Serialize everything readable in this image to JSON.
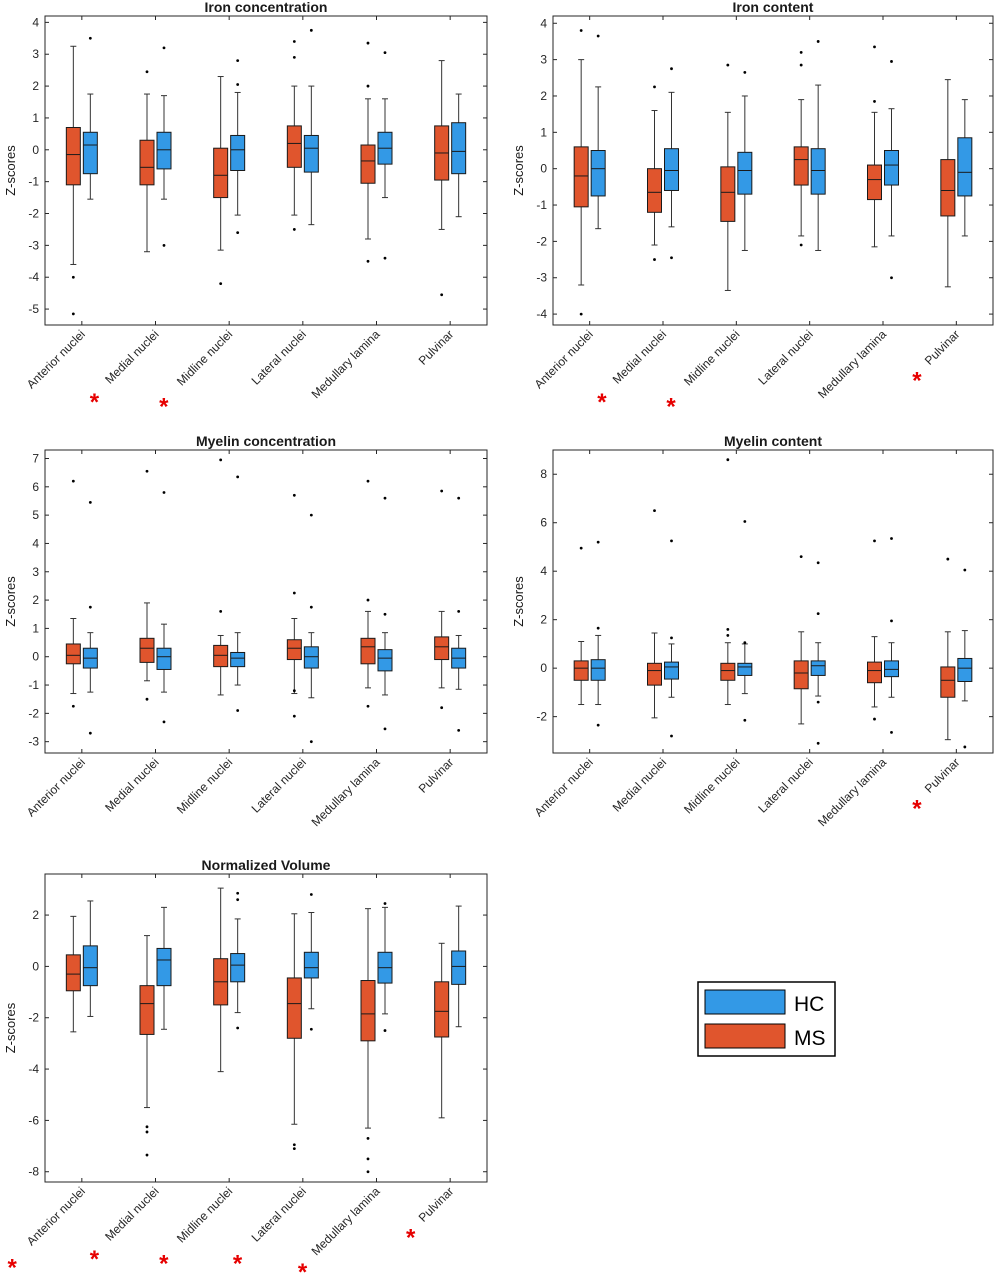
{
  "legend": {
    "entries": [
      {
        "name": "HC",
        "color": "#3399e6"
      },
      {
        "name": "MS",
        "color": "#e0552d"
      }
    ],
    "placement": "lower-right"
  },
  "colors": {
    "HC": "#3399e6",
    "MS": "#e0552d",
    "significance": "#e60000"
  },
  "chart_data": [
    {
      "type": "boxplot",
      "title": "Iron concentration",
      "ylabel": "Z-scores",
      "ylim": [
        -5.5,
        4.2
      ],
      "yticks": [
        -5,
        -4,
        -3,
        -2,
        -1,
        0,
        1,
        2,
        3,
        4
      ],
      "categories": [
        "Anterior nuclei",
        "Medial nuclei",
        "Midline nuclei",
        "Lateral nuclei",
        "Medullary lamina",
        "Pulvinar"
      ],
      "significant": [
        false,
        true,
        true,
        false,
        false,
        false
      ],
      "series": [
        {
          "name": "MS",
          "boxes": [
            {
              "lw": -3.6,
              "q1": -1.1,
              "med": -0.15,
              "q3": 0.7,
              "uw": 3.25,
              "out": [
                -4.0,
                -5.15
              ]
            },
            {
              "lw": -3.2,
              "q1": -1.1,
              "med": -0.55,
              "q3": 0.3,
              "uw": 1.75,
              "out": [
                2.45
              ]
            },
            {
              "lw": -3.15,
              "q1": -1.5,
              "med": -0.8,
              "q3": 0.05,
              "uw": 2.3,
              "out": [
                -4.2
              ]
            },
            {
              "lw": -2.05,
              "q1": -0.55,
              "med": 0.2,
              "q3": 0.75,
              "uw": 2.0,
              "out": [
                3.4,
                2.9,
                -2.5
              ]
            },
            {
              "lw": -2.8,
              "q1": -1.05,
              "med": -0.35,
              "q3": 0.15,
              "uw": 1.6,
              "out": [
                3.35,
                2.0,
                -3.5
              ]
            },
            {
              "lw": -2.5,
              "q1": -0.95,
              "med": -0.1,
              "q3": 0.75,
              "uw": 2.8,
              "out": [
                -4.55
              ]
            }
          ]
        },
        {
          "name": "HC",
          "boxes": [
            {
              "lw": -1.55,
              "q1": -0.75,
              "med": 0.15,
              "q3": 0.55,
              "uw": 1.75,
              "out": [
                3.5
              ]
            },
            {
              "lw": -1.55,
              "q1": -0.6,
              "med": 0.0,
              "q3": 0.55,
              "uw": 1.7,
              "out": [
                3.2,
                -3.0
              ]
            },
            {
              "lw": -2.05,
              "q1": -0.65,
              "med": 0.0,
              "q3": 0.45,
              "uw": 1.8,
              "out": [
                2.8,
                2.05,
                -2.6
              ]
            },
            {
              "lw": -2.35,
              "q1": -0.7,
              "med": 0.05,
              "q3": 0.45,
              "uw": 2.0,
              "out": [
                3.75
              ]
            },
            {
              "lw": -1.5,
              "q1": -0.45,
              "med": 0.05,
              "q3": 0.55,
              "uw": 1.6,
              "out": [
                3.05,
                -3.4
              ]
            },
            {
              "lw": -2.1,
              "q1": -0.75,
              "med": -0.05,
              "q3": 0.85,
              "uw": 1.75,
              "out": []
            }
          ]
        }
      ]
    },
    {
      "type": "boxplot",
      "title": "Iron content",
      "ylabel": "Z-scores",
      "ylim": [
        -4.3,
        4.2
      ],
      "yticks": [
        -4,
        -3,
        -2,
        -1,
        0,
        1,
        2,
        3,
        4
      ],
      "categories": [
        "Anterior nuclei",
        "Medial nuclei",
        "Midline nuclei",
        "Lateral nuclei",
        "Medullary lamina",
        "Pulvinar"
      ],
      "significant": [
        false,
        true,
        true,
        false,
        false,
        true
      ],
      "series": [
        {
          "name": "MS",
          "boxes": [
            {
              "lw": -3.2,
              "q1": -1.05,
              "med": -0.2,
              "q3": 0.6,
              "uw": 3.0,
              "out": [
                3.8,
                -4.0
              ]
            },
            {
              "lw": -2.1,
              "q1": -1.2,
              "med": -0.65,
              "q3": 0.0,
              "uw": 1.6,
              "out": [
                2.25,
                -2.5
              ]
            },
            {
              "lw": -3.35,
              "q1": -1.45,
              "med": -0.65,
              "q3": 0.05,
              "uw": 1.55,
              "out": [
                2.85
              ]
            },
            {
              "lw": -1.85,
              "q1": -0.45,
              "med": 0.25,
              "q3": 0.6,
              "uw": 1.9,
              "out": [
                3.2,
                2.85,
                -2.1
              ]
            },
            {
              "lw": -2.15,
              "q1": -0.85,
              "med": -0.3,
              "q3": 0.1,
              "uw": 1.55,
              "out": [
                3.35,
                1.85
              ]
            },
            {
              "lw": -3.25,
              "q1": -1.3,
              "med": -0.6,
              "q3": 0.25,
              "uw": 2.45,
              "out": []
            }
          ]
        },
        {
          "name": "HC",
          "boxes": [
            {
              "lw": -1.65,
              "q1": -0.75,
              "med": 0.0,
              "q3": 0.5,
              "uw": 2.25,
              "out": [
                3.65
              ]
            },
            {
              "lw": -1.6,
              "q1": -0.6,
              "med": -0.05,
              "q3": 0.55,
              "uw": 2.1,
              "out": [
                2.75,
                -2.45
              ]
            },
            {
              "lw": -2.25,
              "q1": -0.7,
              "med": -0.05,
              "q3": 0.45,
              "uw": 2.0,
              "out": [
                2.65
              ]
            },
            {
              "lw": -2.25,
              "q1": -0.7,
              "med": -0.05,
              "q3": 0.55,
              "uw": 2.3,
              "out": [
                3.5
              ]
            },
            {
              "lw": -1.85,
              "q1": -0.45,
              "med": 0.1,
              "q3": 0.5,
              "uw": 1.65,
              "out": [
                2.95,
                -3.0
              ]
            },
            {
              "lw": -1.85,
              "q1": -0.75,
              "med": -0.1,
              "q3": 0.85,
              "uw": 1.9,
              "out": []
            }
          ]
        }
      ]
    },
    {
      "type": "boxplot",
      "title": "Myelin concentration",
      "ylabel": "Z-scores",
      "ylim": [
        -3.4,
        7.3
      ],
      "yticks": [
        -3,
        -2,
        -1,
        0,
        1,
        2,
        3,
        4,
        5,
        6,
        7
      ],
      "categories": [
        "Anterior nuclei",
        "Medial nuclei",
        "Midline nuclei",
        "Lateral nuclei",
        "Medullary lamina",
        "Pulvinar"
      ],
      "significant": [
        false,
        false,
        false,
        false,
        false,
        false
      ],
      "series": [
        {
          "name": "MS",
          "boxes": [
            {
              "lw": -1.3,
              "q1": -0.25,
              "med": 0.05,
              "q3": 0.45,
              "uw": 1.35,
              "out": [
                6.2,
                -1.75
              ]
            },
            {
              "lw": -0.85,
              "q1": -0.2,
              "med": 0.3,
              "q3": 0.65,
              "uw": 1.9,
              "out": [
                6.55,
                -1.5
              ]
            },
            {
              "lw": -1.35,
              "q1": -0.35,
              "med": 0.05,
              "q3": 0.4,
              "uw": 0.75,
              "out": [
                6.95,
                1.6
              ]
            },
            {
              "lw": -1.3,
              "q1": -0.1,
              "med": 0.3,
              "q3": 0.6,
              "uw": 1.35,
              "out": [
                5.7,
                2.25,
                -1.2,
                -2.1
              ]
            },
            {
              "lw": -1.1,
              "q1": -0.25,
              "med": 0.35,
              "q3": 0.65,
              "uw": 1.6,
              "out": [
                6.2,
                2.0,
                -1.75
              ]
            },
            {
              "lw": -1.1,
              "q1": -0.1,
              "med": 0.35,
              "q3": 0.7,
              "uw": 1.6,
              "out": [
                5.85,
                -1.8
              ]
            }
          ]
        },
        {
          "name": "HC",
          "boxes": [
            {
              "lw": -1.25,
              "q1": -0.4,
              "med": -0.05,
              "q3": 0.3,
              "uw": 0.85,
              "out": [
                5.45,
                1.75,
                -2.7
              ]
            },
            {
              "lw": -1.25,
              "q1": -0.45,
              "med": 0.0,
              "q3": 0.3,
              "uw": 1.15,
              "out": [
                5.8,
                -2.3
              ]
            },
            {
              "lw": -1.0,
              "q1": -0.35,
              "med": -0.05,
              "q3": 0.15,
              "uw": 0.85,
              "out": [
                6.35,
                -1.9
              ]
            },
            {
              "lw": -1.45,
              "q1": -0.4,
              "med": 0.0,
              "q3": 0.35,
              "uw": 0.85,
              "out": [
                5.0,
                1.75,
                -3.0
              ]
            },
            {
              "lw": -1.35,
              "q1": -0.5,
              "med": -0.05,
              "q3": 0.25,
              "uw": 0.85,
              "out": [
                5.6,
                1.5,
                -2.55
              ]
            },
            {
              "lw": -1.15,
              "q1": -0.4,
              "med": -0.05,
              "q3": 0.3,
              "uw": 0.75,
              "out": [
                5.6,
                1.6,
                -2.6
              ]
            }
          ]
        }
      ]
    },
    {
      "type": "boxplot",
      "title": "Myelin content",
      "ylabel": "Z-scores",
      "ylim": [
        -3.5,
        9.0
      ],
      "yticks": [
        -2,
        0,
        2,
        4,
        6,
        8
      ],
      "categories": [
        "Anterior nuclei",
        "Medial nuclei",
        "Midline nuclei",
        "Lateral nuclei",
        "Medullary lamina",
        "Pulvinar"
      ],
      "significant": [
        false,
        false,
        false,
        false,
        false,
        true
      ],
      "series": [
        {
          "name": "MS",
          "boxes": [
            {
              "lw": -1.5,
              "q1": -0.5,
              "med": 0.0,
              "q3": 0.3,
              "uw": 1.1,
              "out": [
                4.95
              ]
            },
            {
              "lw": -2.05,
              "q1": -0.7,
              "med": -0.1,
              "q3": 0.2,
              "uw": 1.45,
              "out": [
                6.5
              ]
            },
            {
              "lw": -1.5,
              "q1": -0.5,
              "med": -0.1,
              "q3": 0.2,
              "uw": 1.05,
              "out": [
                8.6,
                1.6,
                1.35
              ]
            },
            {
              "lw": -2.3,
              "q1": -0.85,
              "med": -0.2,
              "q3": 0.3,
              "uw": 1.5,
              "out": [
                4.6
              ]
            },
            {
              "lw": -1.6,
              "q1": -0.6,
              "med": -0.1,
              "q3": 0.25,
              "uw": 1.3,
              "out": [
                5.25,
                -2.1
              ]
            },
            {
              "lw": -2.95,
              "q1": -1.2,
              "med": -0.5,
              "q3": 0.05,
              "uw": 1.5,
              "out": [
                4.5
              ]
            }
          ]
        },
        {
          "name": "HC",
          "boxes": [
            {
              "lw": -1.5,
              "q1": -0.5,
              "med": 0.0,
              "q3": 0.35,
              "uw": 1.35,
              "out": [
                5.2,
                1.65,
                -2.35
              ]
            },
            {
              "lw": -1.2,
              "q1": -0.45,
              "med": 0.05,
              "q3": 0.25,
              "uw": 1.0,
              "out": [
                5.25,
                1.25,
                -2.8
              ]
            },
            {
              "lw": -1.05,
              "q1": -0.3,
              "med": 0.05,
              "q3": 0.2,
              "uw": 1.0,
              "out": [
                6.05,
                1.05,
                -2.15
              ]
            },
            {
              "lw": -1.15,
              "q1": -0.3,
              "med": 0.1,
              "q3": 0.3,
              "uw": 1.05,
              "out": [
                4.35,
                2.25,
                -1.4,
                -3.1
              ]
            },
            {
              "lw": -1.2,
              "q1": -0.35,
              "med": -0.05,
              "q3": 0.3,
              "uw": 1.05,
              "out": [
                5.35,
                1.95,
                -2.65
              ]
            },
            {
              "lw": -1.35,
              "q1": -0.55,
              "med": 0.0,
              "q3": 0.4,
              "uw": 1.55,
              "out": [
                4.05,
                -3.25
              ]
            }
          ]
        }
      ]
    },
    {
      "type": "boxplot",
      "title": "Normalized Volume",
      "ylabel": "Z-scores",
      "ylim": [
        -8.4,
        3.6
      ],
      "yticks": [
        -8,
        -6,
        -4,
        -2,
        0,
        2
      ],
      "categories": [
        "Anterior nuclei",
        "Medial nuclei",
        "Midline nuclei",
        "Lateral nuclei",
        "Medullary lamina",
        "Pulvinar"
      ],
      "significant": [
        true,
        true,
        true,
        true,
        true,
        true
      ],
      "series": [
        {
          "name": "MS",
          "boxes": [
            {
              "lw": -2.55,
              "q1": -0.95,
              "med": -0.3,
              "q3": 0.45,
              "uw": 1.95,
              "out": []
            },
            {
              "lw": -5.5,
              "q1": -2.65,
              "med": -1.45,
              "q3": -0.75,
              "uw": 1.2,
              "out": [
                -6.25,
                -6.45,
                -7.35
              ]
            },
            {
              "lw": -4.1,
              "q1": -1.5,
              "med": -0.6,
              "q3": 0.3,
              "uw": 3.05,
              "out": []
            },
            {
              "lw": -6.15,
              "q1": -2.8,
              "med": -1.45,
              "q3": -0.45,
              "uw": 2.05,
              "out": [
                -6.95,
                -7.1
              ]
            },
            {
              "lw": -6.3,
              "q1": -2.9,
              "med": -1.85,
              "q3": -0.55,
              "uw": 2.25,
              "out": [
                -6.7,
                -7.5,
                -8.0
              ]
            },
            {
              "lw": -5.9,
              "q1": -2.75,
              "med": -1.75,
              "q3": -0.6,
              "uw": 0.9,
              "out": []
            }
          ]
        },
        {
          "name": "HC",
          "boxes": [
            {
              "lw": -1.95,
              "q1": -0.75,
              "med": -0.05,
              "q3": 0.8,
              "uw": 2.55,
              "out": []
            },
            {
              "lw": -2.45,
              "q1": -0.75,
              "med": 0.25,
              "q3": 0.7,
              "uw": 2.3,
              "out": []
            },
            {
              "lw": -1.8,
              "q1": -0.6,
              "med": 0.05,
              "q3": 0.5,
              "uw": 1.85,
              "out": [
                2.85,
                2.6,
                -2.4
              ]
            },
            {
              "lw": -1.65,
              "q1": -0.45,
              "med": -0.05,
              "q3": 0.55,
              "uw": 2.1,
              "out": [
                2.8,
                -2.45
              ]
            },
            {
              "lw": -1.85,
              "q1": -0.65,
              "med": -0.05,
              "q3": 0.55,
              "uw": 2.3,
              "out": [
                2.45,
                -2.5
              ]
            },
            {
              "lw": -2.35,
              "q1": -0.7,
              "med": 0.0,
              "q3": 0.6,
              "uw": 2.35,
              "out": []
            }
          ]
        }
      ]
    }
  ]
}
